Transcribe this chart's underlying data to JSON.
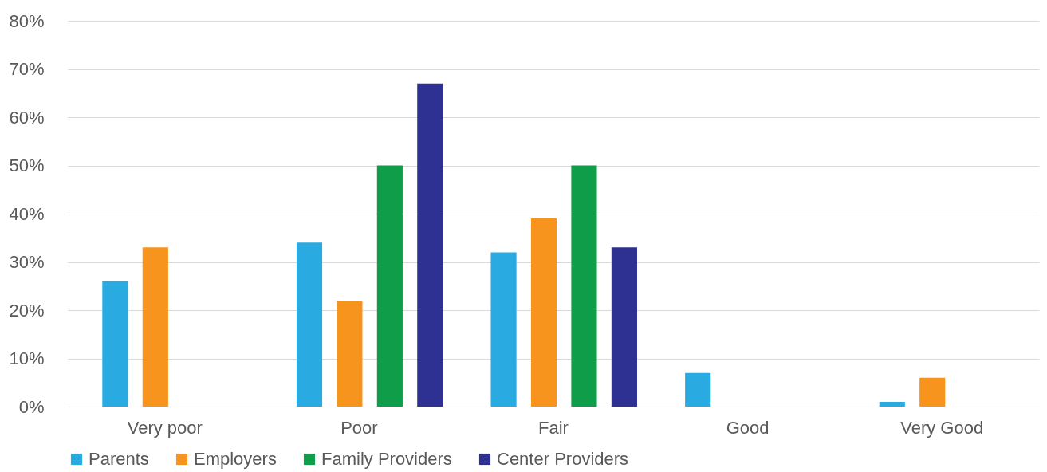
{
  "chart_data": {
    "type": "bar",
    "categories": [
      "Very poor",
      "Poor",
      "Fair",
      "Good",
      "Very Good"
    ],
    "series": [
      {
        "name": "Parents",
        "color": "#29abe2",
        "values": [
          26,
          34,
          32,
          7,
          1
        ]
      },
      {
        "name": "Employers",
        "color": "#f7941d",
        "values": [
          33,
          22,
          39,
          0,
          6
        ]
      },
      {
        "name": "Family Providers",
        "color": "#0f9d4a",
        "values": [
          0,
          50,
          50,
          0,
          0
        ]
      },
      {
        "name": "Center Providers",
        "color": "#2e3192",
        "values": [
          0,
          67,
          33,
          0,
          0
        ]
      }
    ],
    "ylim": [
      0,
      80
    ],
    "yticks": [
      {
        "value": 0,
        "label": "0%"
      },
      {
        "value": 10,
        "label": "10%"
      },
      {
        "value": 20,
        "label": "20%"
      },
      {
        "value": 30,
        "label": "30%"
      },
      {
        "value": 40,
        "label": "40%"
      },
      {
        "value": 50,
        "label": "50%"
      },
      {
        "value": 60,
        "label": "60%"
      },
      {
        "value": 70,
        "label": "70%"
      },
      {
        "value": 80,
        "label": "80%"
      }
    ],
    "grid": "y",
    "legend": "bottom"
  }
}
